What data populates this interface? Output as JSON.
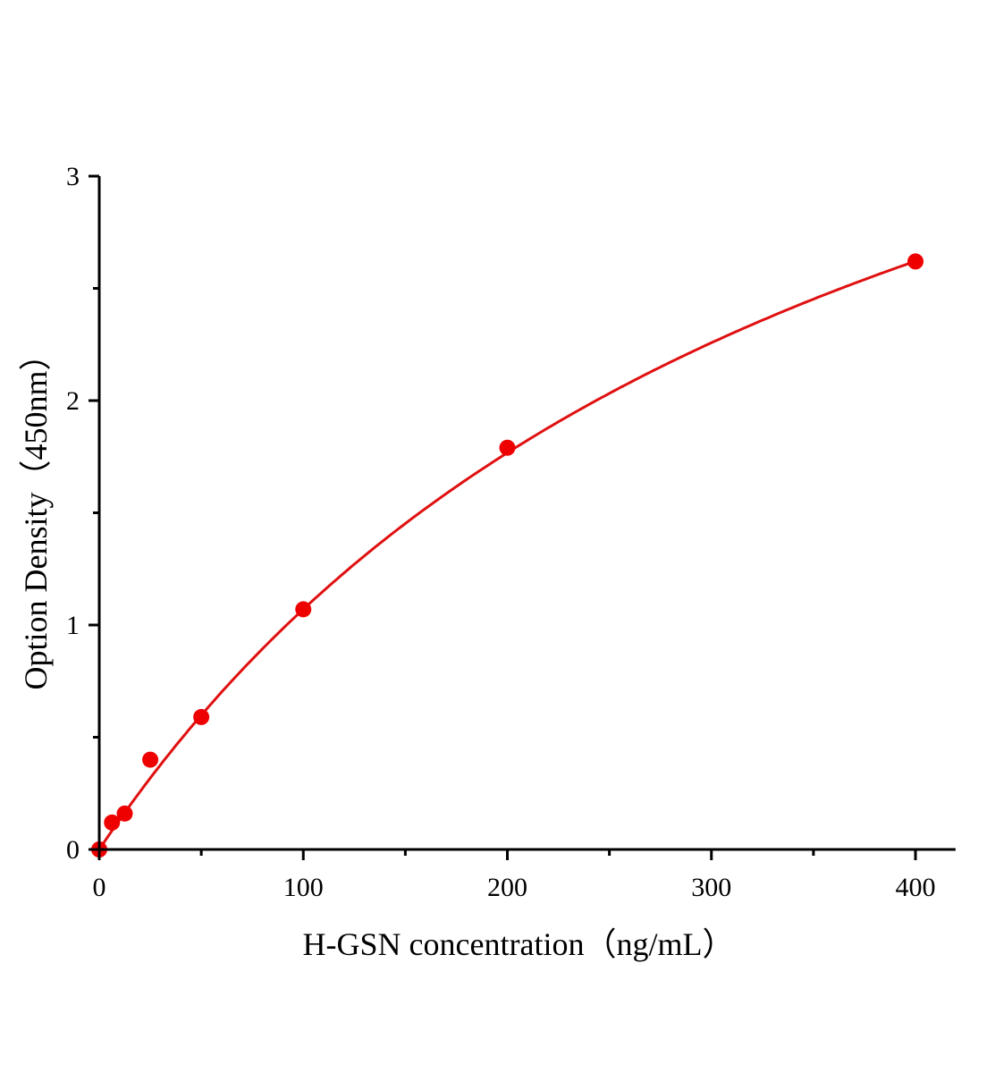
{
  "chart_data": {
    "type": "scatter",
    "title": "",
    "xlabel": "H-GSN concentration（ng/mL）",
    "ylabel": "Option Density（450nm）",
    "xlim": [
      0,
      410
    ],
    "ylim": [
      0,
      3
    ],
    "x_ticks": [
      0,
      100,
      200,
      300,
      400
    ],
    "x_tick_labels": [
      "0",
      "100",
      "200",
      "300",
      "400"
    ],
    "x_minor_ticks": [
      50,
      150,
      250,
      350
    ],
    "y_ticks": [
      0,
      1,
      2,
      3
    ],
    "y_tick_labels": [
      "0",
      "1",
      "2",
      "3"
    ],
    "y_minor_ticks": [
      0.5,
      1.5,
      2.5
    ],
    "grid": false,
    "legend": "none",
    "colors": {
      "points": "#ee0000",
      "curve": "#e01010",
      "axes": "#000000"
    },
    "series": [
      {
        "x": [
          0,
          6.25,
          12.5,
          25,
          50,
          100,
          200,
          400
        ],
        "y": [
          0.0,
          0.12,
          0.16,
          0.4,
          0.59,
          1.07,
          1.79,
          2.62
        ],
        "fit_curve": true
      }
    ]
  }
}
